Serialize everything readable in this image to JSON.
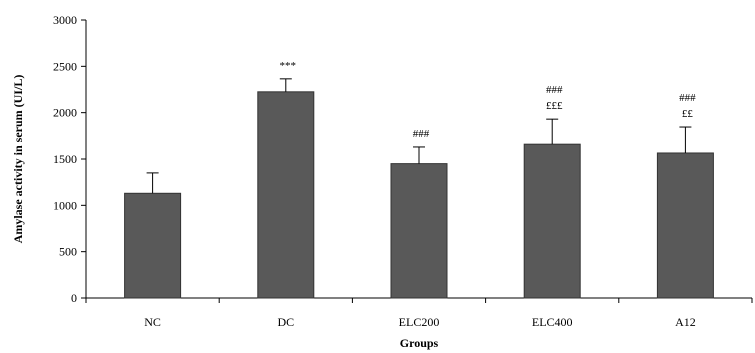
{
  "chart_data": {
    "type": "bar",
    "title": "",
    "xlabel": "Groups",
    "ylabel": "Amylase activity in serum (UI/L)",
    "ylim": [
      0,
      3000
    ],
    "yticks": [
      0,
      500,
      1000,
      1500,
      2000,
      2500,
      3000
    ],
    "categories": [
      "NC",
      "DC",
      "ELC200",
      "ELC400",
      "A12"
    ],
    "values": [
      1130,
      2225,
      1450,
      1660,
      1565
    ],
    "errors": [
      220,
      140,
      180,
      270,
      280
    ],
    "annotations": [
      [],
      [
        "***"
      ],
      [
        "###"
      ],
      [
        "###",
        "£££"
      ],
      [
        "###",
        "££"
      ]
    ],
    "grid": false,
    "bar_color": "#595959"
  }
}
